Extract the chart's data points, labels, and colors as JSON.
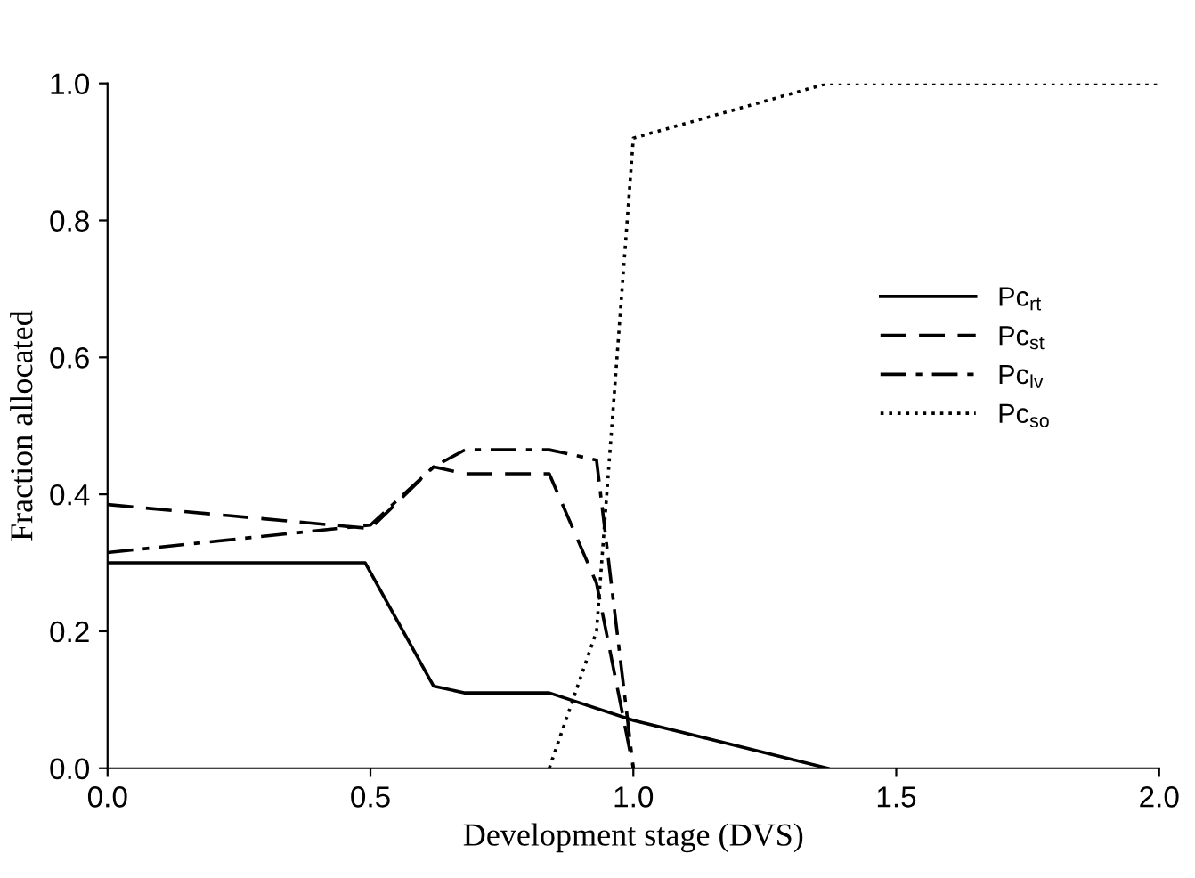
{
  "chart_data": {
    "type": "line",
    "xlabel": "Development stage (DVS)",
    "ylabel": "Fraction allocated",
    "xlim": [
      0,
      2
    ],
    "ylim": [
      0,
      1
    ],
    "xticks": [
      {
        "value": 0,
        "label": "0.0"
      },
      {
        "value": 0.5,
        "label": "0.5"
      },
      {
        "value": 1,
        "label": "1.0"
      },
      {
        "value": 1.5,
        "label": "1.5"
      },
      {
        "value": 2,
        "label": "2.0"
      }
    ],
    "yticks": [
      {
        "value": 0,
        "label": "0.0"
      },
      {
        "value": 0.2,
        "label": "0.2"
      },
      {
        "value": 0.4,
        "label": "0.4"
      },
      {
        "value": 0.6,
        "label": "0.6"
      },
      {
        "value": 0.8,
        "label": "0.8"
      },
      {
        "value": 1,
        "label": "1.0"
      }
    ],
    "legend": "right",
    "grid": false,
    "marker": "none",
    "series": [
      {
        "name": "Pc$_{rt}$",
        "color": "#000000",
        "line_style": "solid",
        "x": [
          0,
          0.49,
          0.62,
          0.68,
          0.84,
          1.0,
          1.37
        ],
        "values": [
          0.3,
          0.3,
          0.12,
          0.11,
          0.11,
          0.07,
          0
        ]
      },
      {
        "name": "Pc$_{st}$",
        "color": "#000000",
        "line_style": "dashed",
        "x": [
          0,
          0.5,
          0.62,
          0.68,
          0.84,
          0.93,
          1.0
        ],
        "values": [
          0.385,
          0.35,
          0.44,
          0.43,
          0.43,
          0.27,
          0
        ]
      },
      {
        "name": "Pc$_{lv}$",
        "color": "#000000",
        "line_style": "dashdot",
        "x": [
          0,
          0.5,
          0.62,
          0.68,
          0.84,
          0.93,
          1.0
        ],
        "values": [
          0.315,
          0.355,
          0.44,
          0.465,
          0.465,
          0.45,
          0
        ]
      },
      {
        "name": "Pc$_{so}$",
        "color": "#000000",
        "line_style": "dotted",
        "x": [
          0.84,
          0.93,
          1.0,
          1.37,
          2.0
        ],
        "values": [
          0,
          0.2,
          0.92,
          1.0,
          1.0
        ]
      }
    ]
  }
}
